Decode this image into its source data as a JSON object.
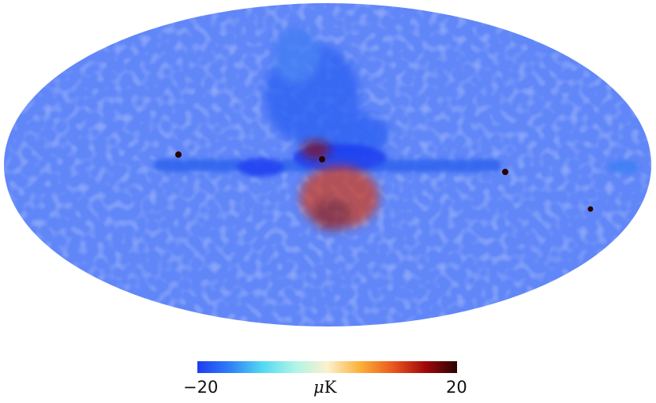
{
  "colorbar": {
    "min_label": "−20",
    "max_label": "20",
    "unit_mu": "μ",
    "unit_suffix": "K",
    "range": [
      -20,
      20
    ],
    "colors": [
      "#1f3cf0",
      "#2f7ff6",
      "#52d9f2",
      "#aef4e6",
      "#fbf1cf",
      "#fbb23a",
      "#ec5a1e",
      "#a3080b",
      "#2a0303"
    ]
  },
  "map": {
    "projection": "Mollweide",
    "background_color": "#ffffff"
  }
}
